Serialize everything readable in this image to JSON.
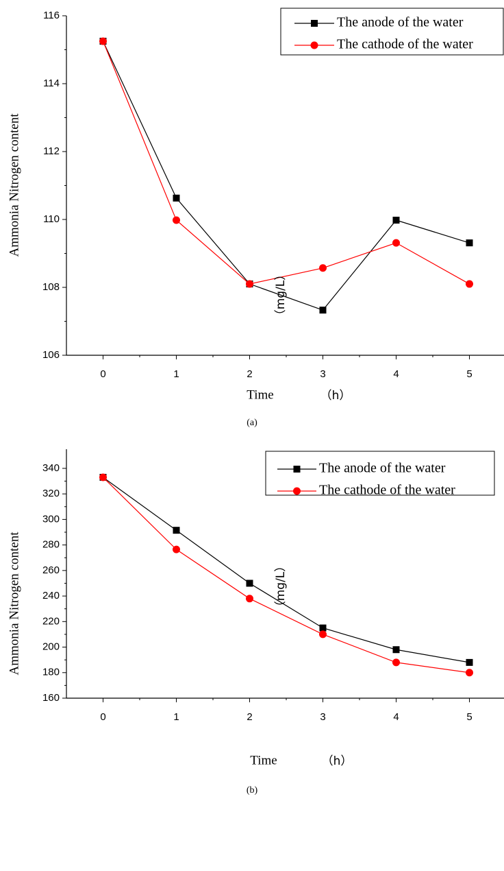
{
  "chart_data": [
    {
      "type": "line",
      "caption": "(a)",
      "y_label": "Ammonia Nitrogen content",
      "y_unit": "（mg/L）",
      "x_label": "Time",
      "x_unit": "（h）",
      "x": [
        0,
        1,
        2,
        3,
        4,
        5
      ],
      "xlim": [
        -0.5,
        5.5
      ],
      "xticks": [
        0,
        1,
        2,
        3,
        4,
        5
      ],
      "ylim": [
        106,
        116
      ],
      "yticks": [
        106,
        108,
        110,
        112,
        114,
        116
      ],
      "legend": "upper right",
      "series": [
        {
          "name": "The anode of the water",
          "color": "#000000",
          "marker": "square",
          "values": [
            115.25,
            110.63,
            108.1,
            107.33,
            109.98,
            109.31
          ]
        },
        {
          "name": "The cathode of the water",
          "color": "#ff0000",
          "marker": "circle",
          "values": [
            115.25,
            109.98,
            108.1,
            108.57,
            109.31,
            108.1
          ]
        }
      ]
    },
    {
      "type": "line",
      "caption": "(b)",
      "y_label": "Ammonia Nitrogen content",
      "y_unit": "（mg/L）",
      "x_label": "Time",
      "x_unit": "（h）",
      "x": [
        0,
        1,
        2,
        3,
        4,
        5
      ],
      "xlim": [
        -0.5,
        5.5
      ],
      "xticks": [
        0,
        1,
        2,
        3,
        4,
        5
      ],
      "ylim": [
        160,
        355
      ],
      "yticks": [
        160,
        180,
        200,
        220,
        240,
        260,
        280,
        300,
        320,
        340
      ],
      "legend": "upper right",
      "series": [
        {
          "name": "The anode of the water",
          "color": "#000000",
          "marker": "square",
          "values": [
            333,
            291.5,
            250,
            215,
            198,
            188
          ]
        },
        {
          "name": "The cathode of the water",
          "color": "#ff0000",
          "marker": "circle",
          "values": [
            333,
            276.5,
            238,
            210,
            188,
            180
          ]
        }
      ]
    }
  ]
}
